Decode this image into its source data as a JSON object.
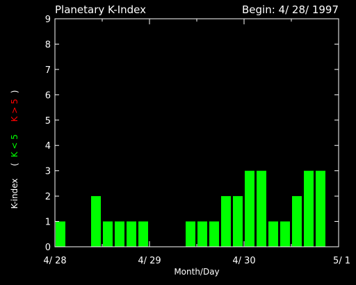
{
  "colors": {
    "background": "#000000",
    "axes": "#ffffff",
    "bars": "#00ff00",
    "low_label": "#00ff00",
    "high_label": "#ff0000"
  },
  "chart_data": {
    "type": "bar",
    "title": "Planetary K-Index",
    "subtitle": "Begin: 4/ 28/ 1997",
    "xlabel": "Month/Day",
    "ylabel": "K-index",
    "ylabel_low": "K < 5",
    "ylabel_high": "K > 5",
    "ylabel_open": "(",
    "ylabel_close": ")",
    "xlim": [
      0,
      24
    ],
    "ylim": [
      0,
      9
    ],
    "yticks": [
      0,
      1,
      2,
      3,
      4,
      5,
      6,
      7,
      8,
      9
    ],
    "xtick_labels": [
      {
        "x": 0,
        "label": "4/ 28"
      },
      {
        "x": 8,
        "label": "4/ 29"
      },
      {
        "x": 16,
        "label": "4/ 30"
      },
      {
        "x": 24,
        "label": "5/ 1"
      }
    ],
    "minor_xticks": [
      4,
      12,
      20
    ],
    "series": [
      {
        "values": [
          1,
          0,
          0,
          2,
          1,
          1,
          1,
          1,
          0,
          0,
          0,
          1,
          1,
          1,
          2,
          2,
          3,
          3,
          1,
          1,
          2,
          3,
          3,
          0
        ]
      }
    ],
    "grid": false,
    "legend": "none"
  }
}
